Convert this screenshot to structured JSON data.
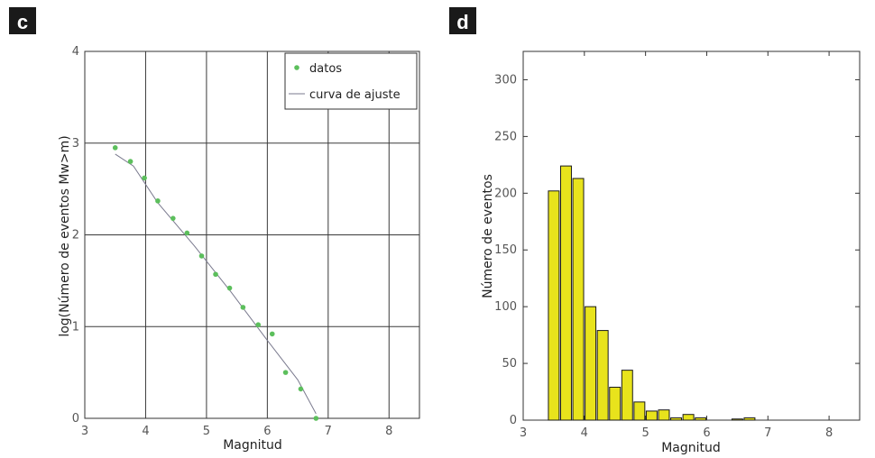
{
  "chart_data": [
    {
      "panel": "c",
      "type": "scatter",
      "xlabel": "Magnitud",
      "ylabel": "log(Número de eventos Mw>m)",
      "xlim": [
        3,
        8.5
      ],
      "ylim": [
        0,
        4
      ],
      "xticks": [
        "3",
        "4",
        "5",
        "6",
        "7",
        "8"
      ],
      "yticks": [
        "0",
        "1",
        "2",
        "3",
        "4"
      ],
      "grid": true,
      "legend_position": "top-right",
      "series": [
        {
          "name": "datos",
          "kind": "points",
          "color": "#5cbf5c",
          "x": [
            3.5,
            3.75,
            3.98,
            4.2,
            4.45,
            4.68,
            4.92,
            5.15,
            5.38,
            5.6,
            5.85,
            6.08,
            6.3,
            6.55,
            6.8
          ],
          "y": [
            2.95,
            2.8,
            2.62,
            2.37,
            2.18,
            2.02,
            1.77,
            1.57,
            1.42,
            1.21,
            1.02,
            0.92,
            0.5,
            0.32,
            0.0
          ]
        },
        {
          "name": "curva de ajuste",
          "kind": "line",
          "color": "#7a7a8e",
          "x": [
            3.5,
            3.8,
            4.2,
            4.8,
            5.4,
            6.0,
            6.5,
            6.8
          ],
          "y": [
            2.88,
            2.75,
            2.35,
            1.88,
            1.38,
            0.85,
            0.42,
            0.05
          ]
        }
      ]
    },
    {
      "panel": "d",
      "type": "bar",
      "xlabel": "Magnitud",
      "ylabel": "Número de eventos",
      "xlim": [
        3,
        8.5
      ],
      "ylim": [
        0,
        325
      ],
      "xticks": [
        "3",
        "4",
        "5",
        "6",
        "7",
        "8"
      ],
      "yticks": [
        "0",
        "50",
        "100",
        "150",
        "200",
        "250",
        "300"
      ],
      "grid": false,
      "bar_color": "#e8e31c",
      "bin_width": 0.2,
      "x": [
        3.5,
        3.7,
        3.9,
        4.1,
        4.3,
        4.5,
        4.7,
        4.9,
        5.1,
        5.3,
        5.5,
        5.7,
        5.9,
        6.1,
        6.3,
        6.5,
        6.7
      ],
      "values": [
        202,
        224,
        213,
        100,
        79,
        29,
        44,
        16,
        8,
        9,
        2,
        5,
        2,
        0,
        0,
        1,
        2
      ]
    }
  ]
}
